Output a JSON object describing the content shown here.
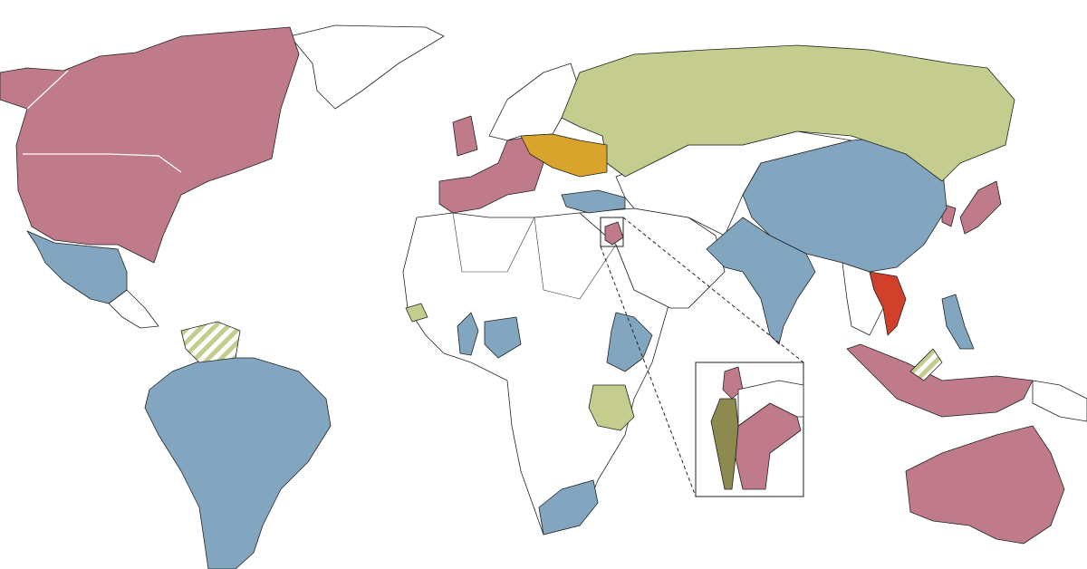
{
  "map": {
    "colors": [
      "#c07b8a",
      "#82a6bf",
      "#c4cd8e",
      "#d9a42c",
      "#d1402a",
      "#8c8a4e",
      "#ffffff"
    ]
  }
}
